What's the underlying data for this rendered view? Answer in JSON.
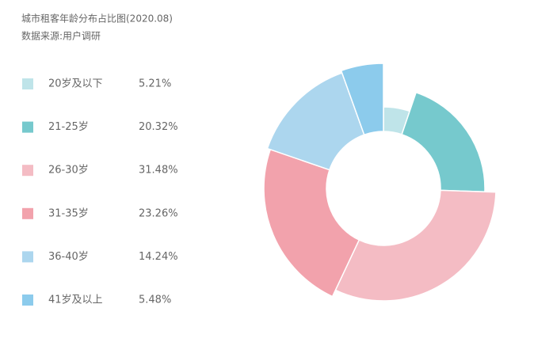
{
  "chart_data": {
    "type": "pie",
    "title": "城市租客年龄分布占比图(2020.08)",
    "subtitle": "数据来源:用户调研",
    "categories": [
      "20岁及以下",
      "21-25岁",
      "26-30岁",
      "31-35岁",
      "36-40岁",
      "41岁及以上"
    ],
    "values": [
      5.21,
      20.32,
      31.48,
      23.26,
      14.24,
      5.48
    ],
    "value_labels": [
      "5.21%",
      "20.32%",
      "31.48%",
      "23.26%",
      "14.24%",
      "5.48%"
    ],
    "colors": [
      "#bfe4e9",
      "#76c9cd",
      "#f4bcc4",
      "#f2a2ac",
      "#acd6ee",
      "#8ccbec"
    ]
  }
}
